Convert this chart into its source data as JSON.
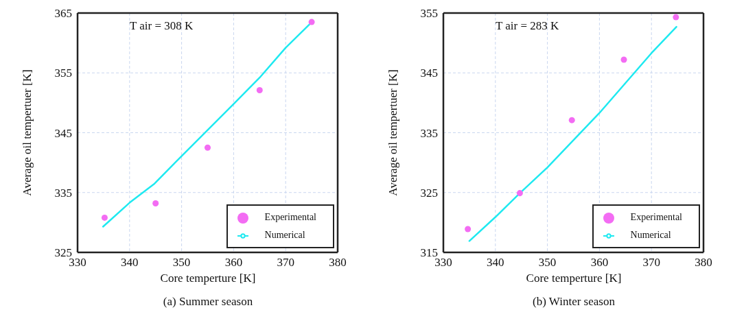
{
  "chart_data": [
    {
      "type": "scatter",
      "title": "(a) Summer season",
      "xlabel": "Core temperture [K]",
      "ylabel": "Average oil tempertuer [K]",
      "annotations": [
        "T air = 308 K"
      ],
      "xlim": [
        330,
        380
      ],
      "xticks": [
        330,
        340,
        350,
        360,
        370,
        380
      ],
      "ylim": [
        325,
        365
      ],
      "yticks": [
        325,
        335,
        345,
        355,
        365
      ],
      "grid": true,
      "legend": "bottom right",
      "series": [
        {
          "name": "Experimental",
          "type": "scatter",
          "marker": "circle",
          "color": "#f36cf3",
          "x": [
            335.2,
            345,
            355,
            365,
            375
          ],
          "values": [
            330.8,
            333.2,
            342.5,
            352.1,
            363.5
          ]
        },
        {
          "name": "Numerical",
          "type": "line",
          "marker": "none",
          "color": "#1ee9f0",
          "x": [
            334.9,
            340,
            344.8,
            350,
            360,
            365,
            370,
            374.7
          ],
          "values": [
            329.3,
            333.3,
            336.5,
            341.1,
            349.8,
            354.2,
            359.2,
            363.2
          ]
        }
      ]
    },
    {
      "type": "scatter",
      "title": "(b) Winter season",
      "xlabel": "Core temperture [K]",
      "ylabel": "Average oil tempertuer [K]",
      "annotations": [
        "T air = 283 K"
      ],
      "xlim": [
        330,
        380
      ],
      "xticks": [
        330,
        340,
        350,
        360,
        370,
        380
      ],
      "ylim": [
        315,
        355
      ],
      "yticks": [
        315,
        325,
        335,
        345,
        355
      ],
      "grid": true,
      "legend": "bottom right",
      "series": [
        {
          "name": "Experimental",
          "type": "scatter",
          "marker": "circle",
          "color": "#f36cf3",
          "x": [
            334.7,
            344.7,
            354.7,
            364.7,
            374.7
          ],
          "values": [
            318.9,
            324.9,
            337.1,
            347.2,
            354.3
          ]
        },
        {
          "name": "Numerical",
          "type": "line",
          "marker": "none",
          "color": "#1ee9f0",
          "x": [
            335,
            340,
            344.7,
            350,
            360,
            370,
            374.8
          ],
          "values": [
            316.9,
            320.9,
            324.9,
            329.2,
            338.3,
            348.3,
            352.7
          ]
        }
      ]
    }
  ]
}
